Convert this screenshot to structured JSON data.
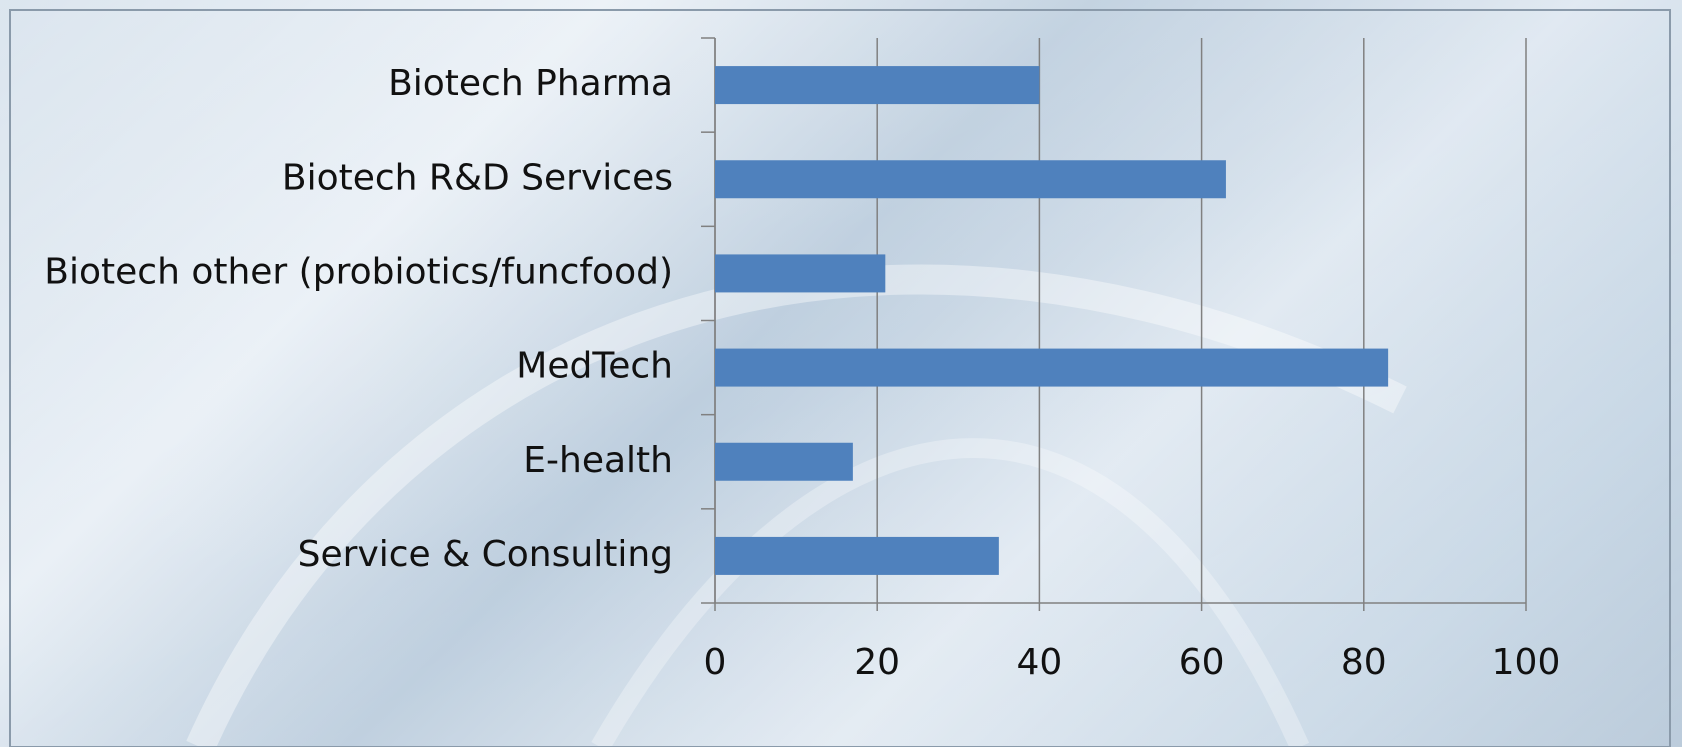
{
  "chart_data": {
    "type": "bar",
    "orientation": "horizontal",
    "categories": [
      "Biotech Pharma",
      "Biotech R&D Services",
      "Biotech other (probiotics/funcfood)",
      "MedTech",
      "E-health",
      "Service & Consulting"
    ],
    "values": [
      40,
      63,
      21,
      83,
      17,
      35
    ],
    "color": "#4f81bd",
    "xlim": [
      0,
      100
    ],
    "xticks": [
      0,
      20,
      40,
      60,
      80,
      100
    ],
    "grid": true
  }
}
